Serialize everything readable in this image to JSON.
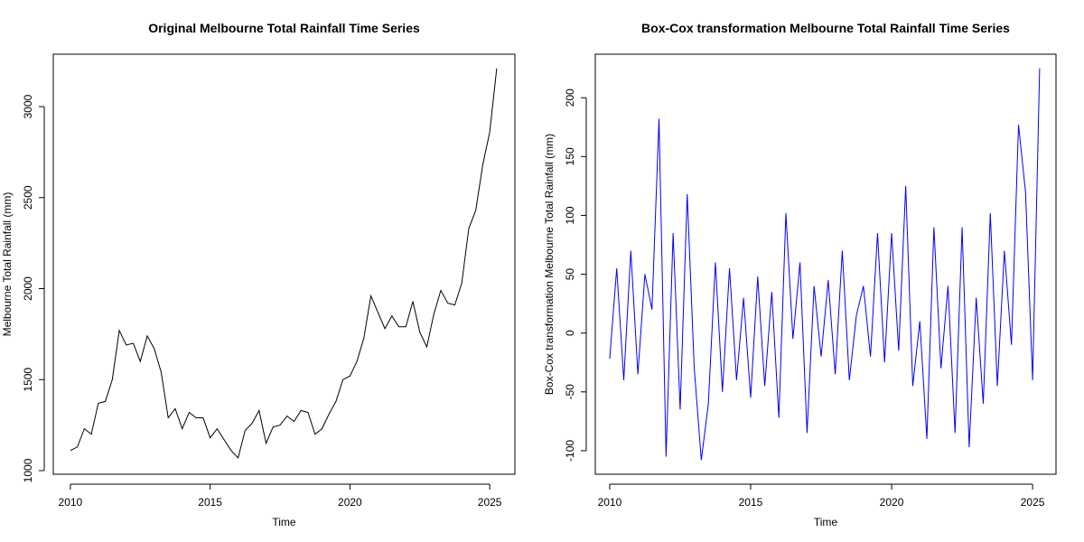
{
  "chart_data": [
    {
      "type": "line",
      "title": "Original Melbourne Total Rainfall Time Series",
      "x_label": "Time",
      "y_label": "Melbourne Total Rainfall (mm)",
      "x": [
        2010,
        2010.25,
        2010.5,
        2010.75,
        2011,
        2011.25,
        2011.5,
        2011.75,
        2012,
        2012.25,
        2012.5,
        2012.75,
        2013,
        2013.25,
        2013.5,
        2013.75,
        2014,
        2014.25,
        2014.5,
        2014.75,
        2015,
        2015.25,
        2015.5,
        2015.75,
        2016,
        2016.25,
        2016.5,
        2016.75,
        2017,
        2017.25,
        2017.5,
        2017.75,
        2018,
        2018.25,
        2018.5,
        2018.75,
        2019,
        2019.25,
        2019.5,
        2019.75,
        2020,
        2020.25,
        2020.5,
        2020.75,
        2021,
        2021.25,
        2021.5,
        2021.75,
        2022,
        2022.25,
        2022.5,
        2022.75,
        2023,
        2023.25,
        2023.5,
        2023.75,
        2024,
        2024.25,
        2024.5,
        2024.75,
        2025,
        2025.25
      ],
      "series": [
        {
          "color": "#000000",
          "values": [
            1110,
            1130,
            1230,
            1200,
            1370,
            1380,
            1500,
            1770,
            1690,
            1700,
            1600,
            1740,
            1670,
            1540,
            1290,
            1340,
            1230,
            1320,
            1290,
            1290,
            1180,
            1230,
            1170,
            1110,
            1070,
            1220,
            1260,
            1330,
            1150,
            1240,
            1250,
            1300,
            1270,
            1330,
            1320,
            1200,
            1230,
            1310,
            1380,
            1500,
            1520,
            1600,
            1730,
            1960,
            1870,
            1780,
            1850,
            1790,
            1790,
            1930,
            1760,
            1680,
            1860,
            1990,
            1920,
            1910,
            2030,
            2330,
            2430,
            2680,
            2860,
            3210
          ]
        }
      ],
      "xlim": [
        2009.39,
        2025.9
      ],
      "ylim": [
        980,
        3288
      ],
      "xticks": [
        2010,
        2015,
        2020,
        2025
      ],
      "yticks": [
        1000,
        1500,
        2000,
        2500,
        3000
      ]
    },
    {
      "type": "line",
      "title": "Box-Cox transformation Melbourne Total Rainfall Time Series",
      "x_label": "Time",
      "y_label": "Box-Cox transformation Melbourne Total Rainfall (mm)",
      "x": [
        2010,
        2010.25,
        2010.5,
        2010.75,
        2011,
        2011.25,
        2011.5,
        2011.75,
        2012,
        2012.25,
        2012.5,
        2012.75,
        2013,
        2013.25,
        2013.5,
        2013.75,
        2014,
        2014.25,
        2014.5,
        2014.75,
        2015,
        2015.25,
        2015.5,
        2015.75,
        2016,
        2016.25,
        2016.5,
        2016.75,
        2017,
        2017.25,
        2017.5,
        2017.75,
        2018,
        2018.25,
        2018.5,
        2018.75,
        2019,
        2019.25,
        2019.5,
        2019.75,
        2020,
        2020.25,
        2020.5,
        2020.75,
        2021,
        2021.25,
        2021.5,
        2021.75,
        2022,
        2022.25,
        2022.5,
        2022.75,
        2023,
        2023.25,
        2023.5,
        2023.75,
        2024,
        2024.25,
        2024.5,
        2024.75,
        2025,
        2025.25
      ],
      "series": [
        {
          "color": "#0000ff",
          "values": [
            -22,
            55,
            -40,
            70,
            -35,
            50,
            20,
            182,
            -105,
            85,
            -65,
            118,
            -30,
            -108,
            -60,
            60,
            -50,
            55,
            -40,
            30,
            -55,
            48,
            -45,
            35,
            -72,
            102,
            -5,
            60,
            -85,
            40,
            -20,
            45,
            -35,
            70,
            -40,
            15,
            40,
            -20,
            85,
            -25,
            85,
            -15,
            125,
            -45,
            10,
            -90,
            90,
            -30,
            40,
            -85,
            90,
            -97,
            30,
            -60,
            102,
            -45,
            70,
            -10,
            177,
            120,
            -40,
            225
          ]
        }
      ],
      "xlim": [
        2009.49,
        2025.83
      ],
      "ylim": [
        -120,
        237
      ],
      "xticks": [
        2010,
        2015,
        2020,
        2025
      ],
      "yticks": [
        -100,
        -50,
        0,
        50,
        100,
        150,
        200
      ]
    }
  ]
}
